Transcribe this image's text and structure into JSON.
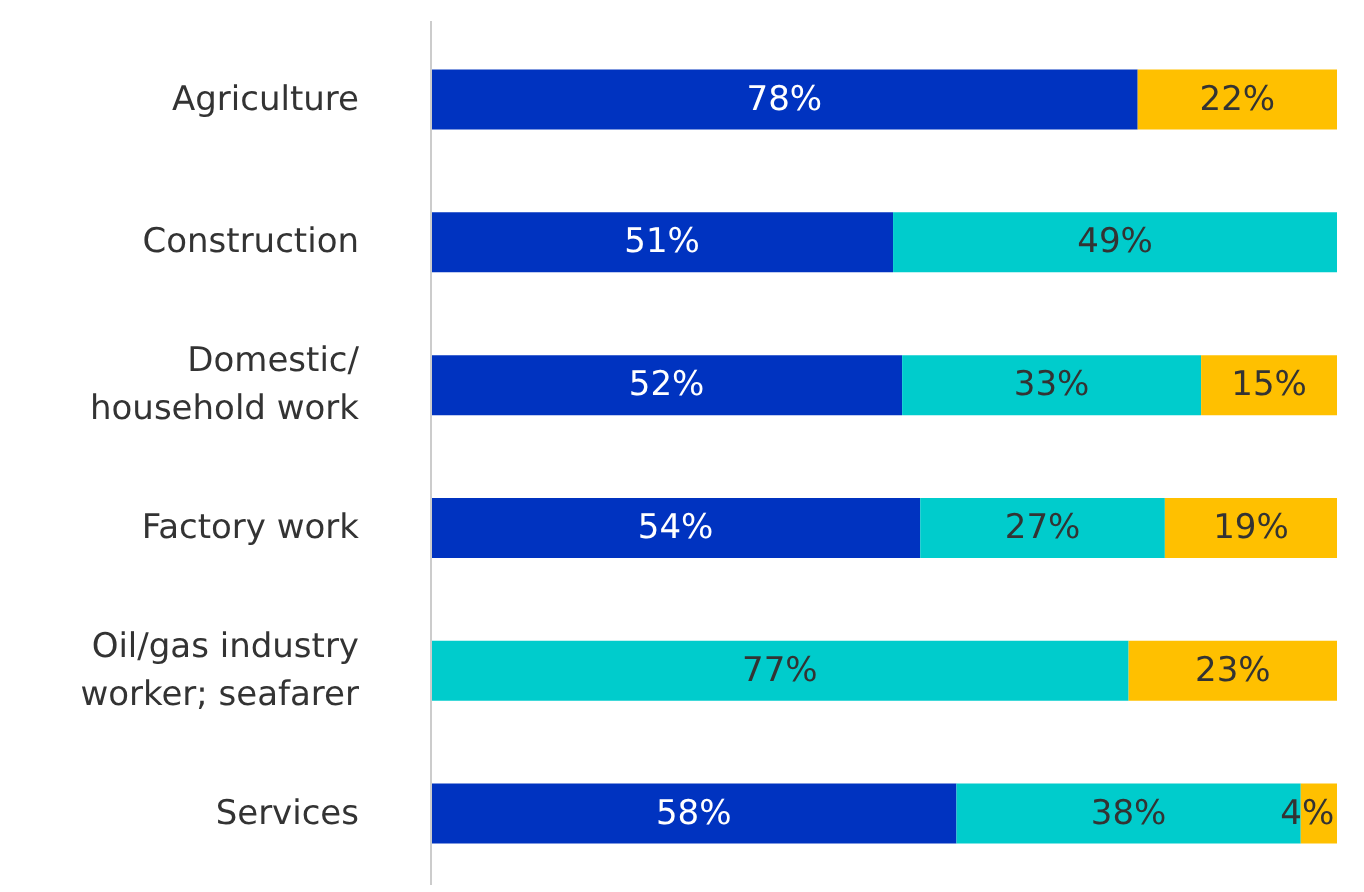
{
  "chart_data": {
    "type": "bar",
    "orientation": "horizontal",
    "stacked": true,
    "grid": false,
    "tick_labels": "y",
    "categories": [
      "Agriculture",
      "Construction",
      "Domestic/\nhousehold work",
      "Factory work",
      "Oil/gas industry\nworker; seafarer",
      "Services"
    ],
    "series": [
      {
        "color": "#0033c0",
        "values": [
          78,
          51,
          52,
          54,
          null,
          58
        ],
        "value_labels": [
          "78%",
          "51%",
          "52%",
          "54%",
          null,
          "58%"
        ]
      },
      {
        "color": "#00cccc",
        "values": [
          null,
          49,
          33,
          27,
          77,
          38
        ],
        "value_labels": [
          null,
          "49%",
          "33%",
          "27%",
          "77%",
          "38%"
        ]
      },
      {
        "color": "#ffc000",
        "values": [
          22,
          null,
          15,
          19,
          23,
          4
        ],
        "value_labels": [
          "22%",
          null,
          "15%",
          "19%",
          "23%",
          "4%"
        ]
      }
    ]
  }
}
